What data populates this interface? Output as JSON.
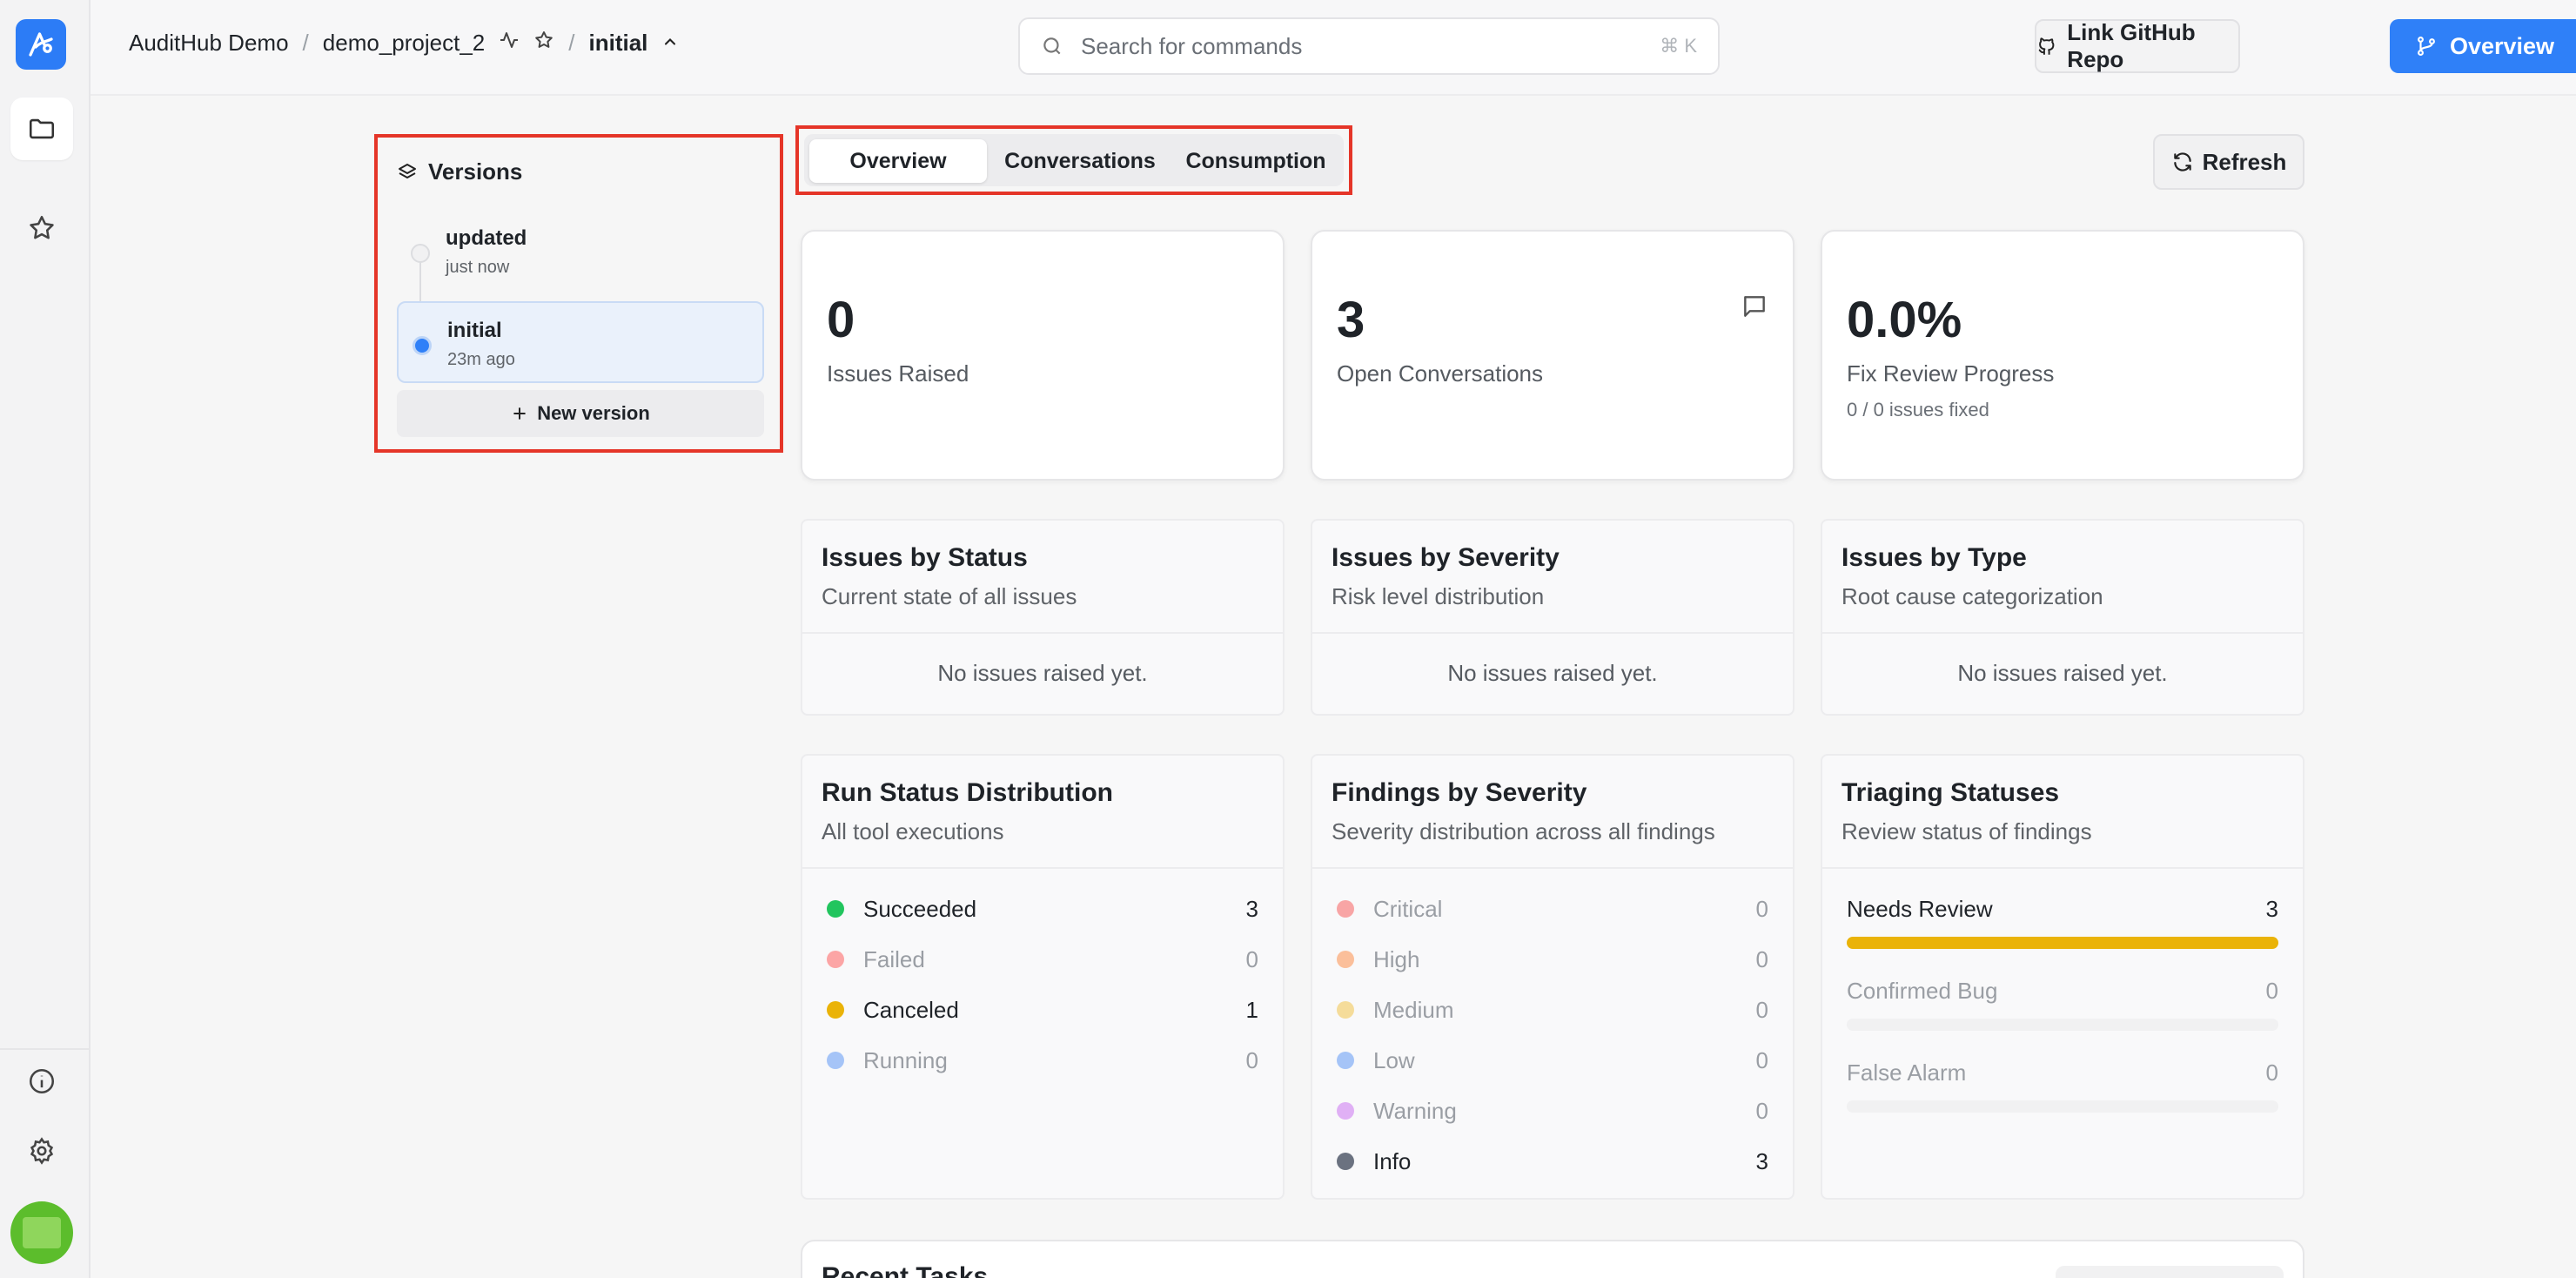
{
  "colors": {
    "accent": "#2f80f8",
    "highlight": "#e53528",
    "success": "#22c55e",
    "warning": "#eab308"
  },
  "breadcrumb": {
    "org": "AuditHub Demo",
    "sep": "/",
    "project": "demo_project_2",
    "version": "initial"
  },
  "search": {
    "placeholder": "Search for commands",
    "shortcut": "⌘ K"
  },
  "header": {
    "github_label": "Link GitHub Repo",
    "overview_label": "Overview"
  },
  "versions": {
    "title": "Versions",
    "items": [
      {
        "name": "updated",
        "time": "just now",
        "selected": false
      },
      {
        "name": "initial",
        "time": "23m ago",
        "selected": true
      }
    ],
    "new_label": "New version"
  },
  "tabs": [
    {
      "label": "Overview",
      "active": true
    },
    {
      "label": "Conversations",
      "active": false
    },
    {
      "label": "Consumption",
      "active": false
    }
  ],
  "refresh_label": "Refresh",
  "stats": {
    "issues": {
      "value": "0",
      "label": "Issues Raised"
    },
    "conversations": {
      "value": "3",
      "label": "Open Conversations"
    },
    "fix_review": {
      "value": "0.0%",
      "label": "Fix Review Progress",
      "detail": "0 / 0 issues fixed"
    }
  },
  "panels": {
    "status": {
      "title": "Issues by Status",
      "subtitle": "Current state of all issues",
      "empty": "No issues raised yet."
    },
    "severity": {
      "title": "Issues by Severity",
      "subtitle": "Risk level distribution",
      "empty": "No issues raised yet."
    },
    "type": {
      "title": "Issues by Type",
      "subtitle": "Root cause categorization",
      "empty": "No issues raised yet."
    }
  },
  "run_status": {
    "title": "Run Status Distribution",
    "subtitle": "All tool executions",
    "items": [
      {
        "name": "Succeeded",
        "count": "3",
        "color": "#22c55e"
      },
      {
        "name": "Failed",
        "count": "0",
        "color": "#fca5a5"
      },
      {
        "name": "Canceled",
        "count": "1",
        "color": "#eab308"
      },
      {
        "name": "Running",
        "count": "0",
        "color": "#a5c4f7"
      }
    ]
  },
  "findings": {
    "title": "Findings by Severity",
    "subtitle": "Severity distribution across all findings",
    "items": [
      {
        "name": "Critical",
        "count": "0",
        "color": "#f8a5a5"
      },
      {
        "name": "High",
        "count": "0",
        "color": "#fbbf9a"
      },
      {
        "name": "Medium",
        "count": "0",
        "color": "#f5dc9a"
      },
      {
        "name": "Low",
        "count": "0",
        "color": "#a5c4f7"
      },
      {
        "name": "Warning",
        "count": "0",
        "color": "#e0b0f5"
      },
      {
        "name": "Info",
        "count": "3",
        "color": "#6b7280"
      }
    ]
  },
  "triaging": {
    "title": "Triaging Statuses",
    "subtitle": "Review status of findings",
    "items": [
      {
        "name": "Needs Review",
        "count": "3",
        "fraction": 1.0
      },
      {
        "name": "Confirmed Bug",
        "count": "0",
        "fraction": 0
      },
      {
        "name": "False Alarm",
        "count": "0",
        "fraction": 0
      }
    ]
  },
  "recent": {
    "title": "Recent Tasks"
  }
}
